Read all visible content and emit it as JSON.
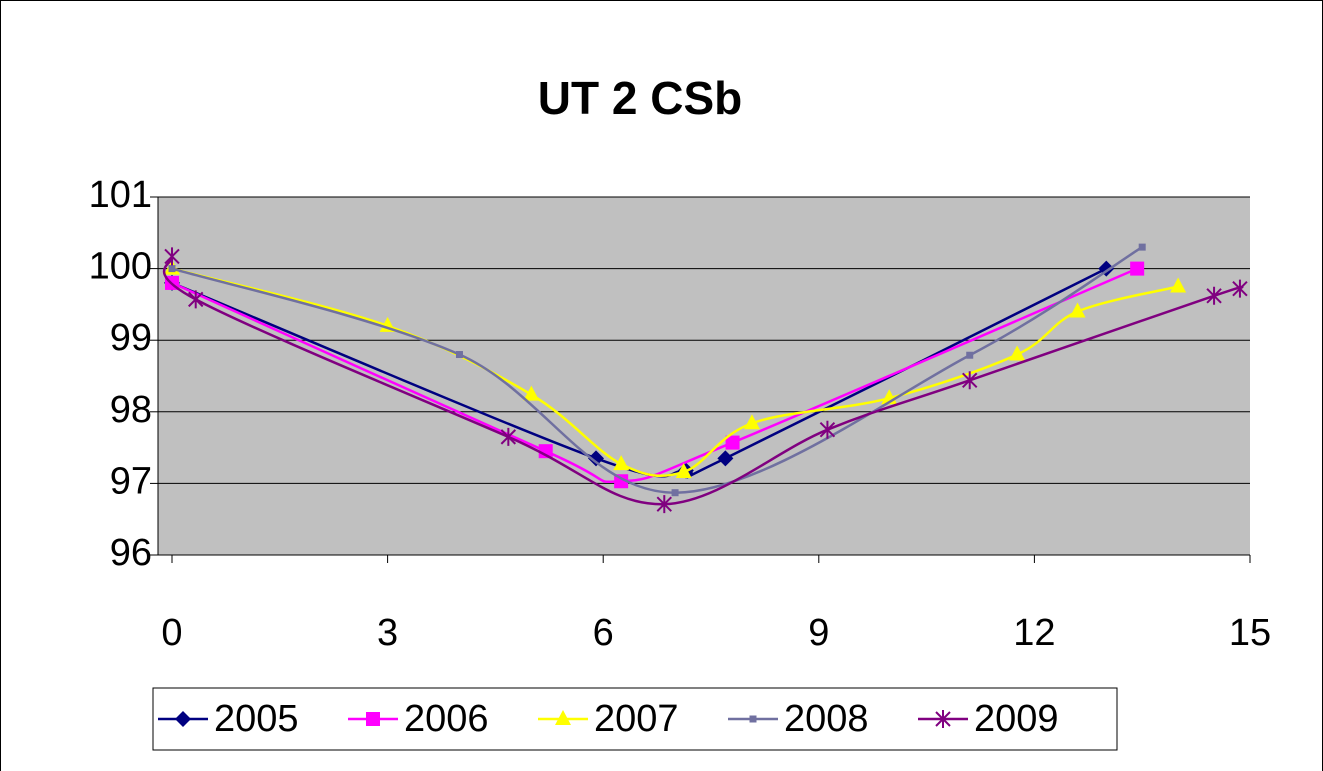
{
  "chart_data": {
    "type": "scatter-smooth",
    "title": "UT 2 CSb",
    "xlim": [
      0,
      15
    ],
    "xticks": [
      0,
      3,
      6,
      9,
      12,
      15
    ],
    "ylim": [
      96,
      101
    ],
    "yticks": [
      96,
      97,
      98,
      99,
      100,
      101
    ],
    "grid": true,
    "legend": "bottom",
    "series": [
      {
        "name": "2005",
        "color": "#000080",
        "marker": "diamond",
        "x": [
          0,
          5.9,
          7.15,
          7.7,
          13.0
        ],
        "values": [
          99.8,
          97.35,
          97.18,
          97.35,
          100
        ]
      },
      {
        "name": "2006",
        "color": "#ff00ff",
        "marker": "square",
        "x": [
          0,
          5.2,
          6.25,
          7.8,
          13.43
        ],
        "values": [
          99.8,
          97.45,
          97.03,
          97.57,
          100
        ]
      },
      {
        "name": "2007",
        "color": "#ffff00",
        "marker": "triangle",
        "x": [
          0,
          3.0,
          5.0,
          6.25,
          7.12,
          8.07,
          9.98,
          11.76,
          12.6,
          14.0
        ],
        "values": [
          100,
          99.2,
          98.24,
          97.27,
          97.16,
          97.84,
          98.19,
          98.8,
          99.4,
          99.75
        ]
      },
      {
        "name": "2008",
        "color": "#7070a0",
        "marker": "small-square",
        "x": [
          0,
          4.0,
          7.0,
          11.1,
          13.5
        ],
        "values": [
          100,
          98.8,
          96.87,
          98.79,
          100.3
        ]
      },
      {
        "name": "2009",
        "color": "#800080",
        "marker": "star",
        "x": [
          0,
          0.33,
          4.68,
          6.85,
          9.12,
          11.1,
          14.5,
          14.86
        ],
        "values": [
          100.17,
          99.57,
          97.65,
          96.71,
          97.75,
          98.44,
          99.62,
          99.72
        ]
      }
    ]
  }
}
